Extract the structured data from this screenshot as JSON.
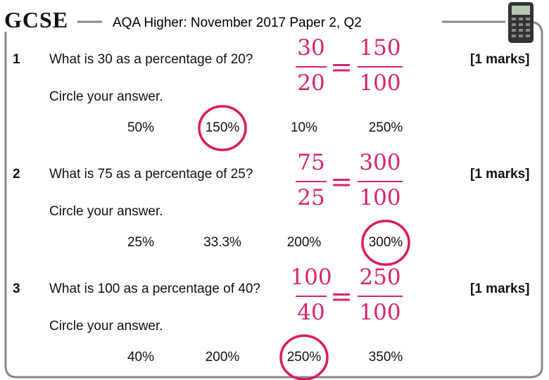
{
  "header": {
    "logo": "GCSE",
    "title": "AQA Higher: November 2017 Paper 2, Q2"
  },
  "questions": [
    {
      "number": "1",
      "text": "What is 30 as a percentage of 20?",
      "marks": "[1 marks]",
      "instruction": "Circle your answer.",
      "fraction": {
        "left_numerator": "30",
        "left_denominator": "20",
        "equals": "=",
        "right_numerator": "150",
        "right_denominator": "100"
      },
      "options": [
        "50%",
        "150%",
        "10%",
        "250%"
      ],
      "circled": 1
    },
    {
      "number": "2",
      "text": "What is 75 as a percentage of 25?",
      "marks": "[1 marks]",
      "instruction": "Circle your answer.",
      "fraction": {
        "left_numerator": "75",
        "left_denominator": "25",
        "equals": "=",
        "right_numerator": "300",
        "right_denominator": "100"
      },
      "options": [
        "25%",
        "33.3%",
        "200%",
        "300%"
      ],
      "circled": 3
    },
    {
      "number": "3",
      "text": "What is 100 as a percentage of 40?",
      "marks": "[1 marks]",
      "instruction": "Circle your answer.",
      "fraction": {
        "left_numerator": "100",
        "left_denominator": "40",
        "equals": "=",
        "right_numerator": "250",
        "right_denominator": "100"
      },
      "options": [
        "40%",
        "200%",
        "250%",
        "350%"
      ],
      "circled": 2
    }
  ]
}
